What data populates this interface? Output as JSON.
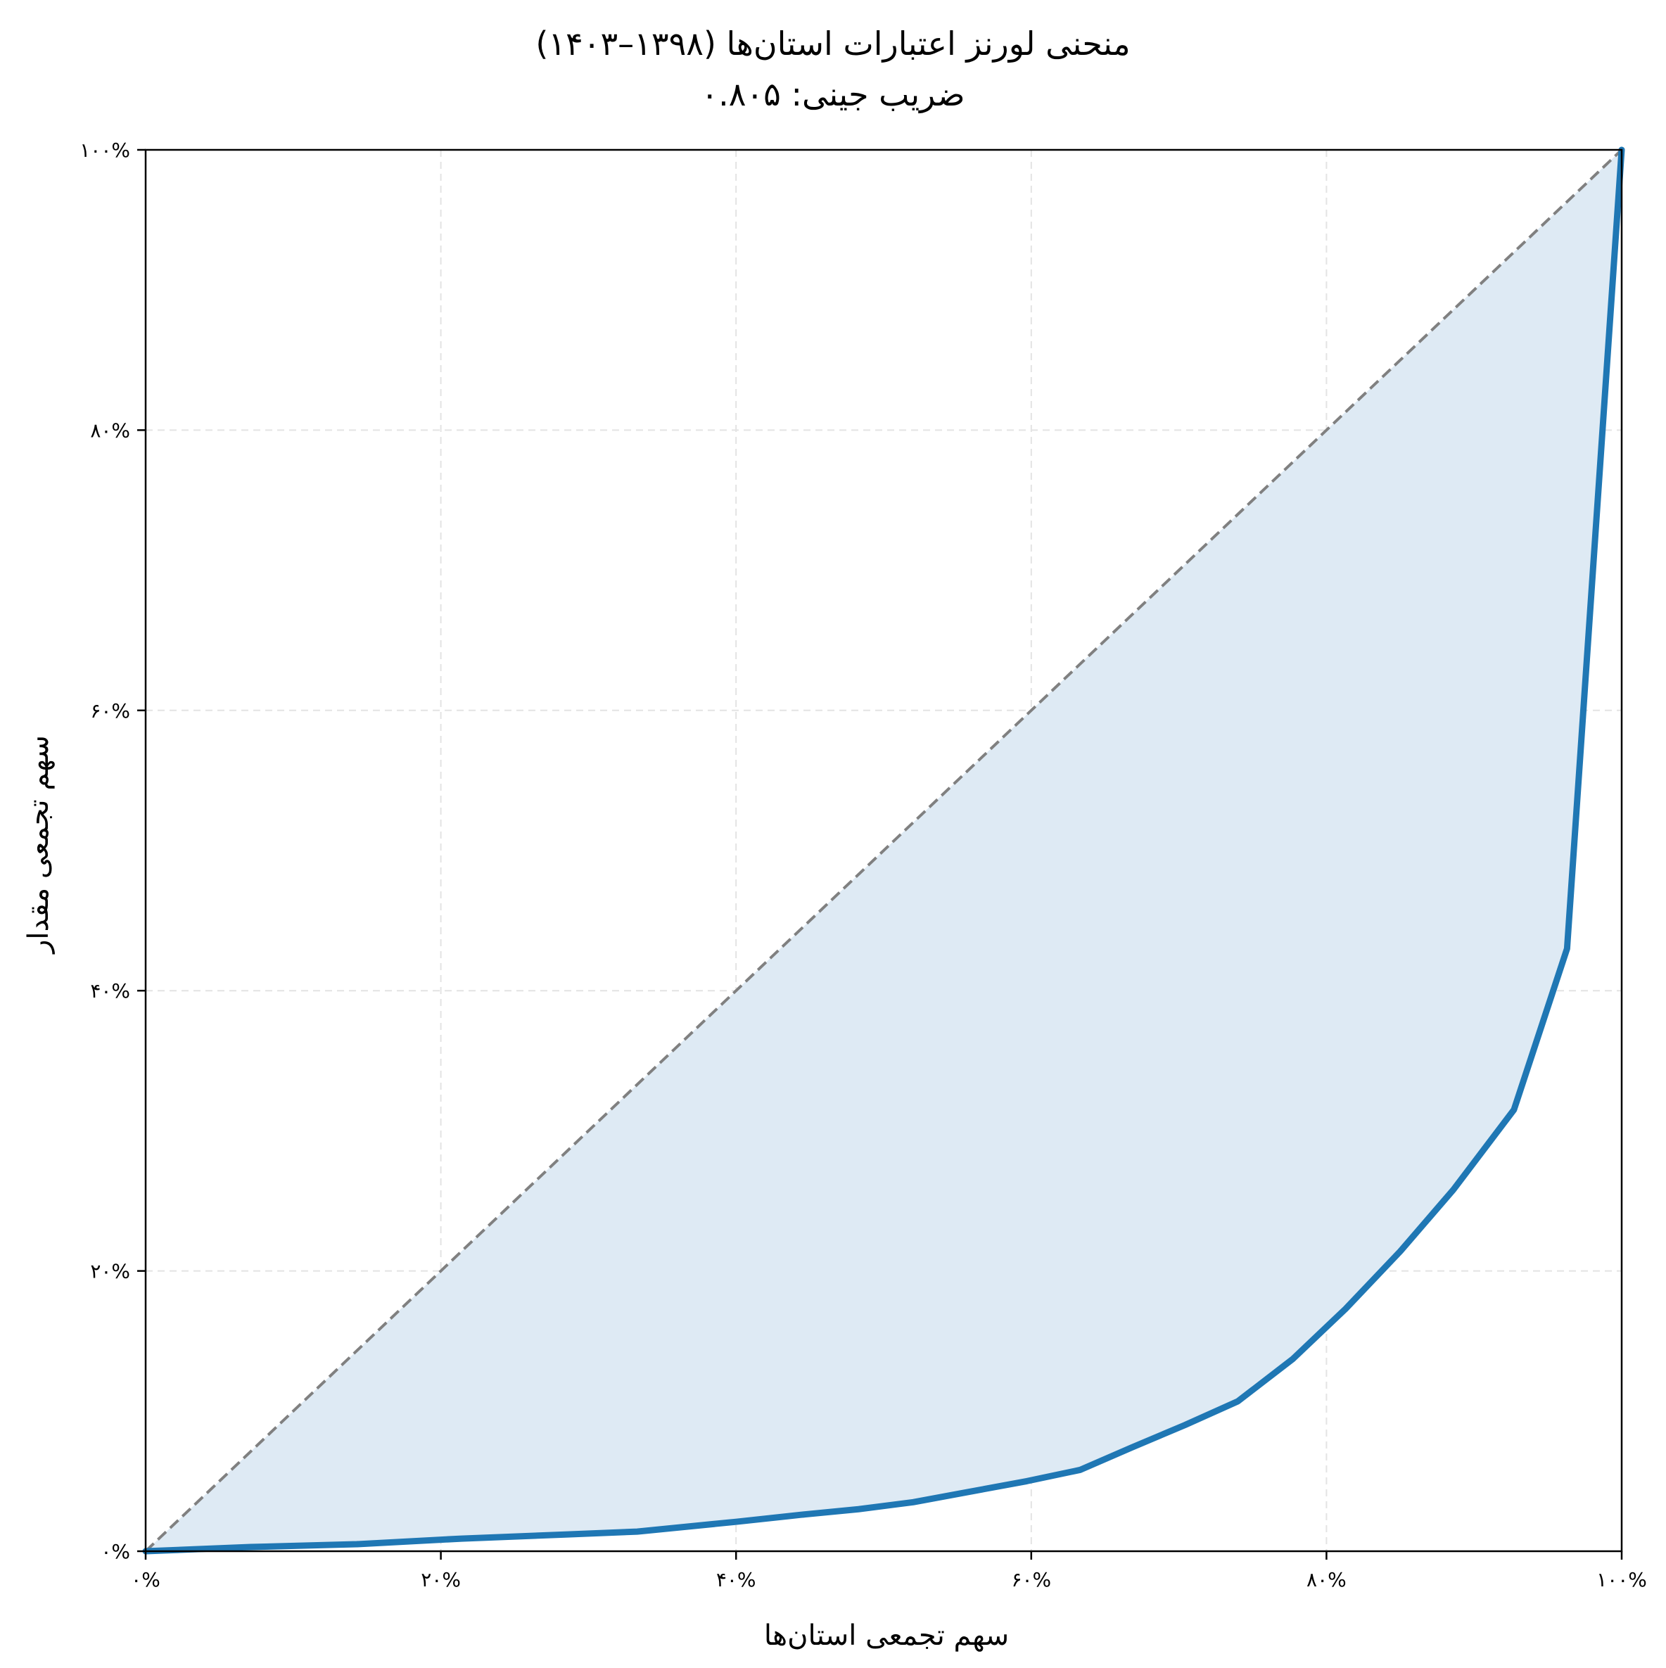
{
  "chart_data": {
    "type": "line",
    "title": "منحنی لورنز اعتبارات استان‌ها (۱۳۹۸–۱۴۰۳)",
    "subtitle": "ضریب جینی: ۰.۸۰۵",
    "xlabel": "سهم تجمعی استان‌ها",
    "ylabel": "سهم تجمعی مقدار",
    "xlim": [
      0,
      100
    ],
    "ylim": [
      0,
      100
    ],
    "x_ticks": [
      0,
      20,
      40,
      60,
      80,
      100
    ],
    "y_ticks": [
      0,
      20,
      40,
      60,
      80,
      100
    ],
    "x_tick_labels": [
      "۰%",
      "۲۰%",
      "۴۰%",
      "۶۰%",
      "۸۰%",
      "۱۰۰%"
    ],
    "y_tick_labels": [
      "۰%",
      "۲۰%",
      "۴۰%",
      "۶۰%",
      "۸۰%",
      "۱۰۰%"
    ],
    "grid": true,
    "series": [
      {
        "kind": "lorenz-curve",
        "color": "#1f77b4",
        "fill": "#deeaf4",
        "x": [
          0,
          7.1,
          14.3,
          21.4,
          28.6,
          33.3,
          40,
          44.4,
          48.3,
          52,
          55.6,
          59.7,
          63.3,
          66.8,
          70.4,
          74,
          77.7,
          81.3,
          85,
          88.6,
          92.7,
          96.3,
          100
        ],
        "y": [
          0,
          0.3,
          0.5,
          0.9,
          1.2,
          1.4,
          2.1,
          2.6,
          3.0,
          3.5,
          4.2,
          5.0,
          5.8,
          7.4,
          9.0,
          10.7,
          13.7,
          17.3,
          21.4,
          25.8,
          31.5,
          43.0,
          100
        ]
      },
      {
        "kind": "equality-line",
        "color": "#808080",
        "x": [
          0,
          100
        ],
        "y": [
          0,
          100
        ]
      }
    ]
  }
}
